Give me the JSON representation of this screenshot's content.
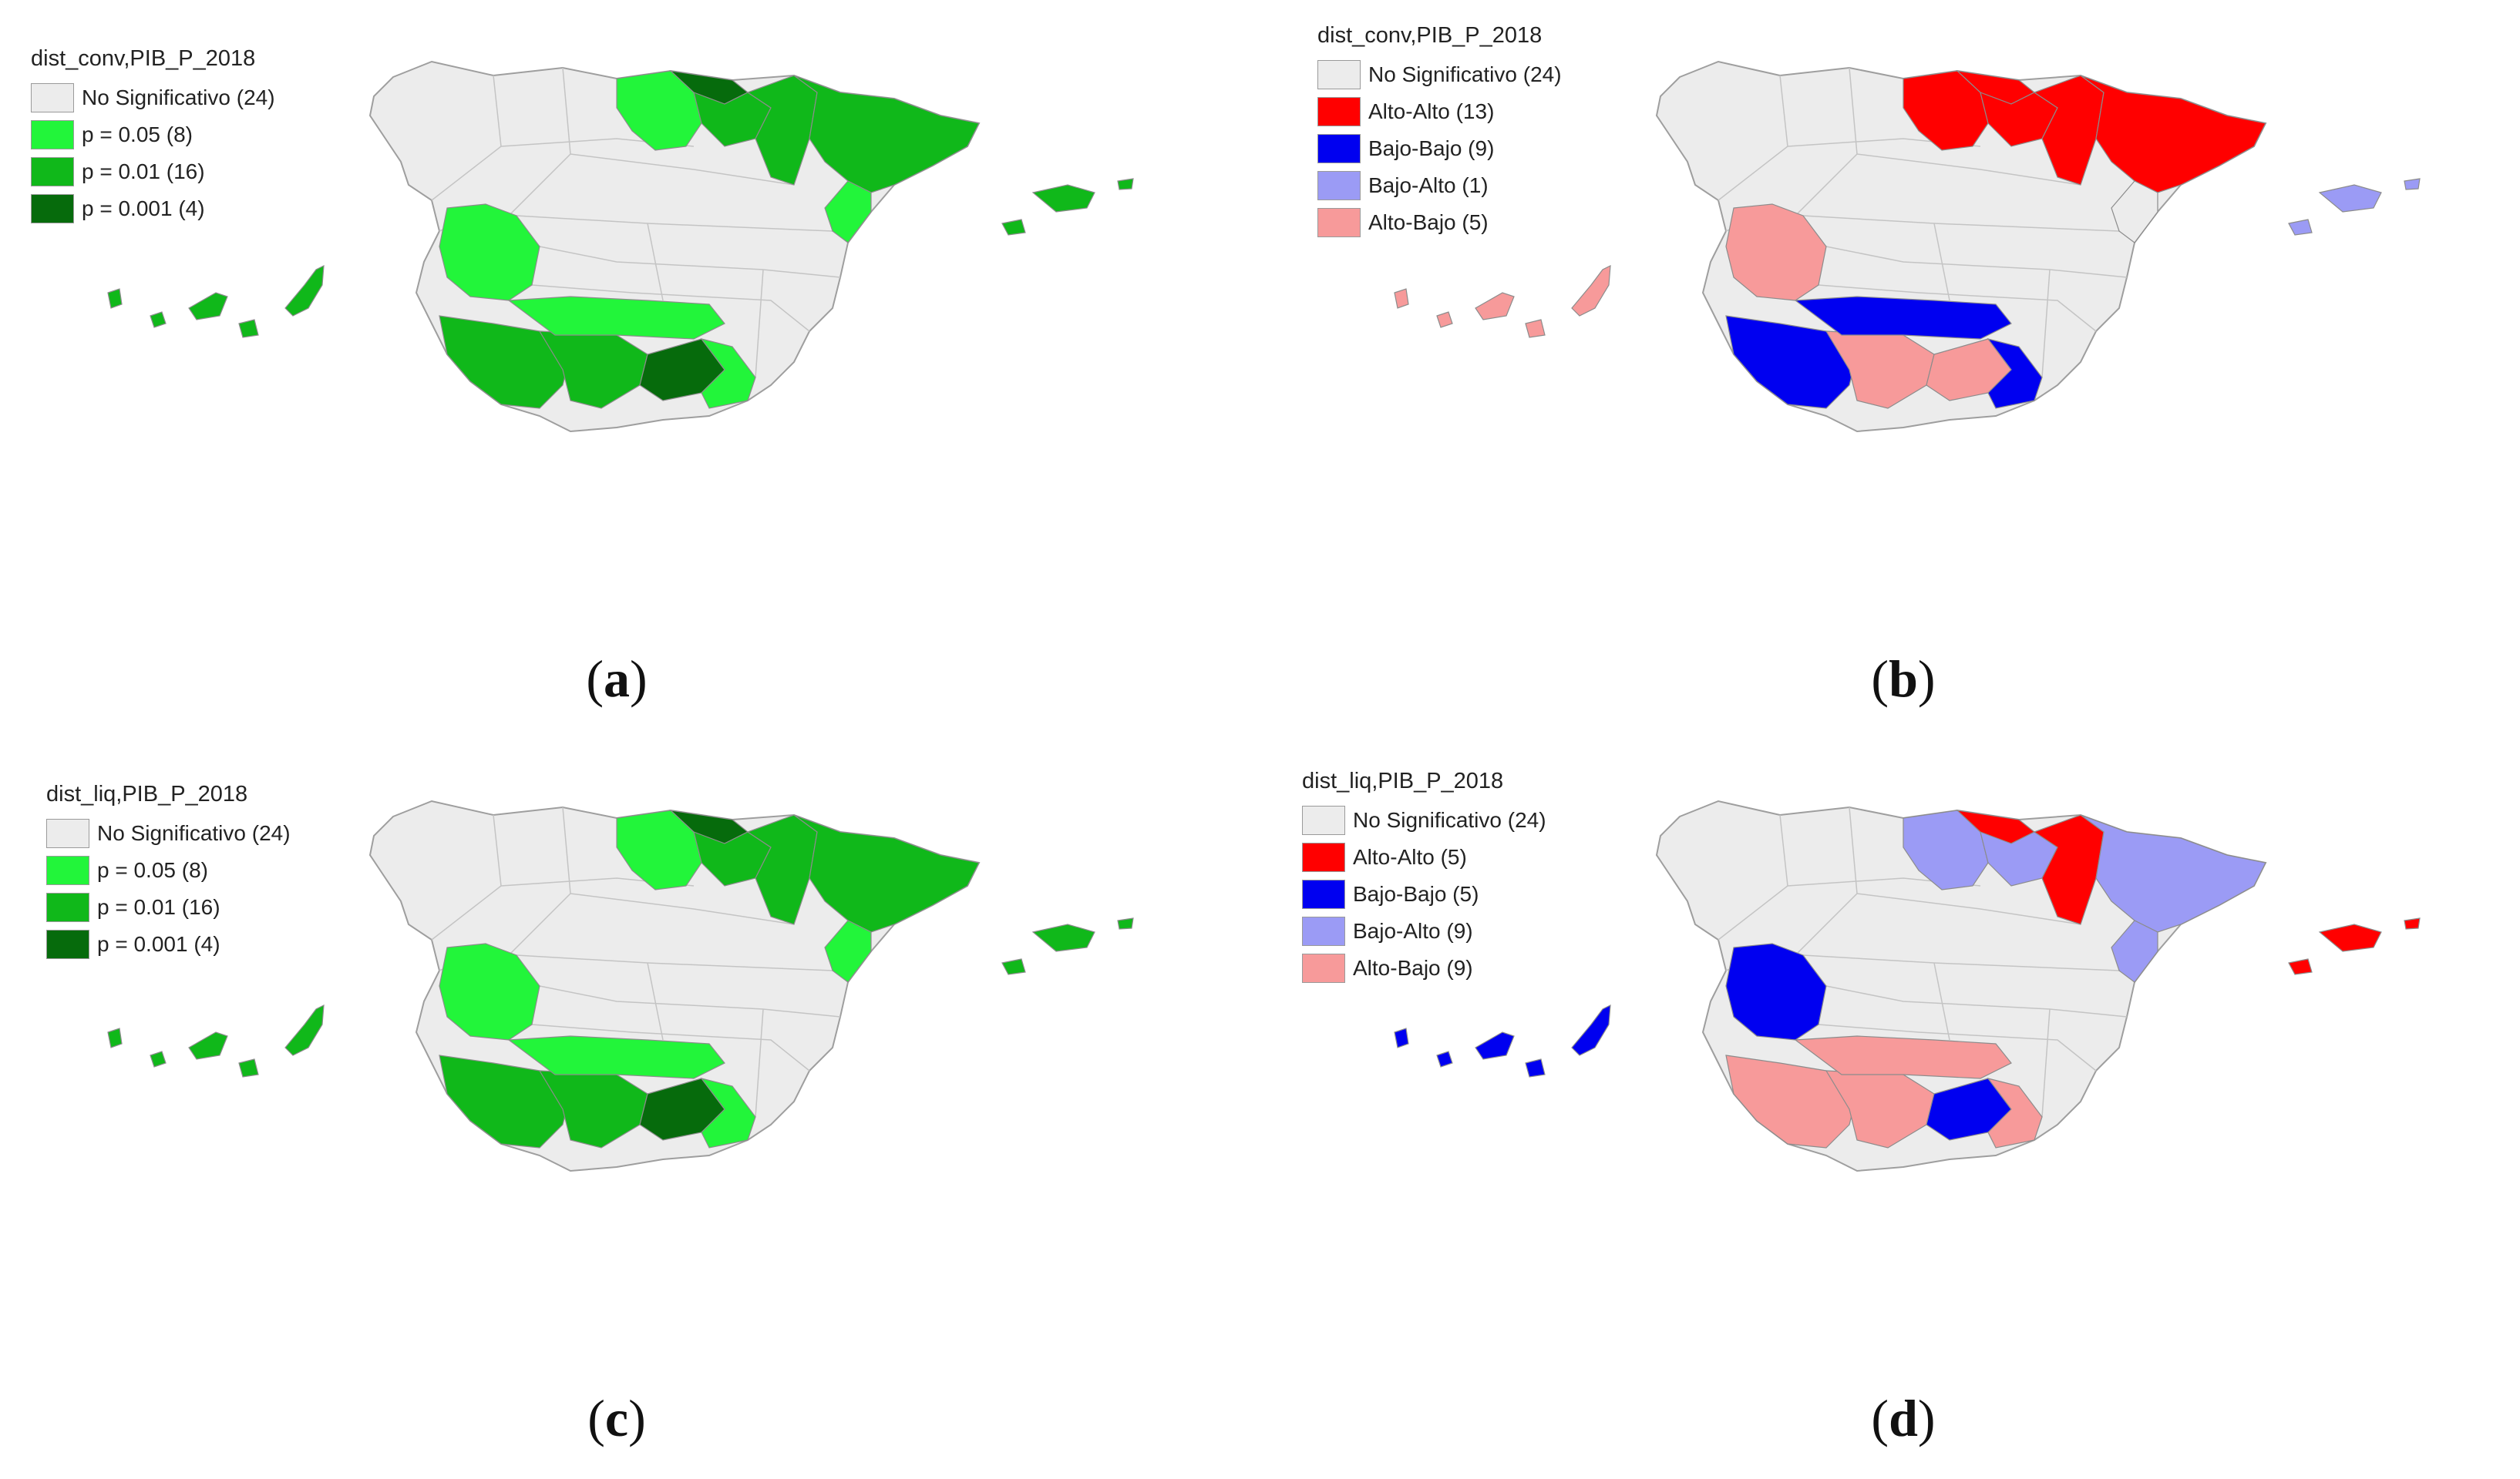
{
  "colors": {
    "no_sig": "#ececec",
    "border": "#9e9e9e",
    "p005": "#22f53a",
    "p001": "#10b81a",
    "p0001": "#066b0c",
    "alto_alto": "#ff0000",
    "bajo_bajo": "#0000f0",
    "bajo_alto": "#9b9bf5",
    "alto_bajo": "#f79a9a"
  },
  "panels": {
    "a": {
      "title": "dist_conv,PIB_P_2018",
      "caption_letter": "a",
      "legend": [
        {
          "label": "No Significativo (24)",
          "color": "#ececec"
        },
        {
          "label": "p = 0.05 (8)",
          "color": "#22f53a"
        },
        {
          "label": "p = 0.01 (16)",
          "color": "#10b81a"
        },
        {
          "label": "p = 0.001 (4)",
          "color": "#066b0c"
        }
      ]
    },
    "b": {
      "title": "dist_conv,PIB_P_2018",
      "caption_letter": "b",
      "legend": [
        {
          "label": "No Significativo (24)",
          "color": "#ececec"
        },
        {
          "label": "Alto-Alto (13)",
          "color": "#ff0000"
        },
        {
          "label": "Bajo-Bajo (9)",
          "color": "#0000f0"
        },
        {
          "label": "Bajo-Alto (1)",
          "color": "#9b9bf5"
        },
        {
          "label": "Alto-Bajo (5)",
          "color": "#f79a9a"
        }
      ]
    },
    "c": {
      "title": "dist_liq,PIB_P_2018",
      "caption_letter": "c",
      "legend": [
        {
          "label": "No Significativo (24)",
          "color": "#ececec"
        },
        {
          "label": "p = 0.05 (8)",
          "color": "#22f53a"
        },
        {
          "label": "p = 0.01 (16)",
          "color": "#10b81a"
        },
        {
          "label": "p = 0.001 (4)",
          "color": "#066b0c"
        }
      ]
    },
    "d": {
      "title": "dist_liq,PIB_P_2018",
      "caption_letter": "d",
      "legend": [
        {
          "label": "No Significativo (24)",
          "color": "#ececec"
        },
        {
          "label": "Alto-Alto (5)",
          "color": "#ff0000"
        },
        {
          "label": "Bajo-Bajo (5)",
          "color": "#0000f0"
        },
        {
          "label": "Bajo-Alto (9)",
          "color": "#9b9bf5"
        },
        {
          "label": "Alto-Bajo (9)",
          "color": "#f79a9a"
        }
      ]
    }
  },
  "region_classes": {
    "a": {
      "north_center": "p005",
      "basque": "p0001",
      "navarra_rioja": "p001",
      "aragon": "p001",
      "catalonia": "p001",
      "valencia_north": "p005",
      "extremadura": "p005",
      "andalusia_w": "p001",
      "andalusia_c": "p001",
      "granada": "p0001",
      "andalusia_n": "p005",
      "almeria": "p005",
      "balearic": "p001",
      "canary": "p001"
    },
    "b": {
      "north_center": "alto_alto",
      "basque": "alto_alto",
      "navarra_rioja": "alto_alto",
      "aragon": "alto_alto",
      "catalonia": "alto_alto",
      "valencia_north": "no_sig",
      "extremadura": "alto_bajo",
      "andalusia_w": "bajo_bajo",
      "andalusia_c": "alto_bajo",
      "granada": "alto_bajo",
      "andalusia_n": "bajo_bajo",
      "almeria": "bajo_bajo",
      "balearic": "bajo_alto",
      "canary": "alto_bajo"
    },
    "c": {
      "north_center": "p005",
      "basque": "p0001",
      "navarra_rioja": "p001",
      "aragon": "p001",
      "catalonia": "p001",
      "valencia_north": "p005",
      "extremadura": "p005",
      "andalusia_w": "p001",
      "andalusia_c": "p001",
      "granada": "p0001",
      "andalusia_n": "p005",
      "almeria": "p005",
      "balearic": "p001",
      "canary": "p001"
    },
    "d": {
      "north_center": "bajo_alto",
      "basque": "alto_alto",
      "navarra_rioja": "bajo_alto",
      "aragon": "alto_alto",
      "catalonia": "bajo_alto",
      "valencia_north": "bajo_alto",
      "extremadura": "bajo_bajo",
      "andalusia_w": "alto_bajo",
      "andalusia_c": "alto_bajo",
      "granada": "bajo_bajo",
      "andalusia_n": "alto_bajo",
      "almeria": "alto_bajo",
      "balearic": "alto_alto",
      "canary": "bajo_bajo"
    }
  }
}
